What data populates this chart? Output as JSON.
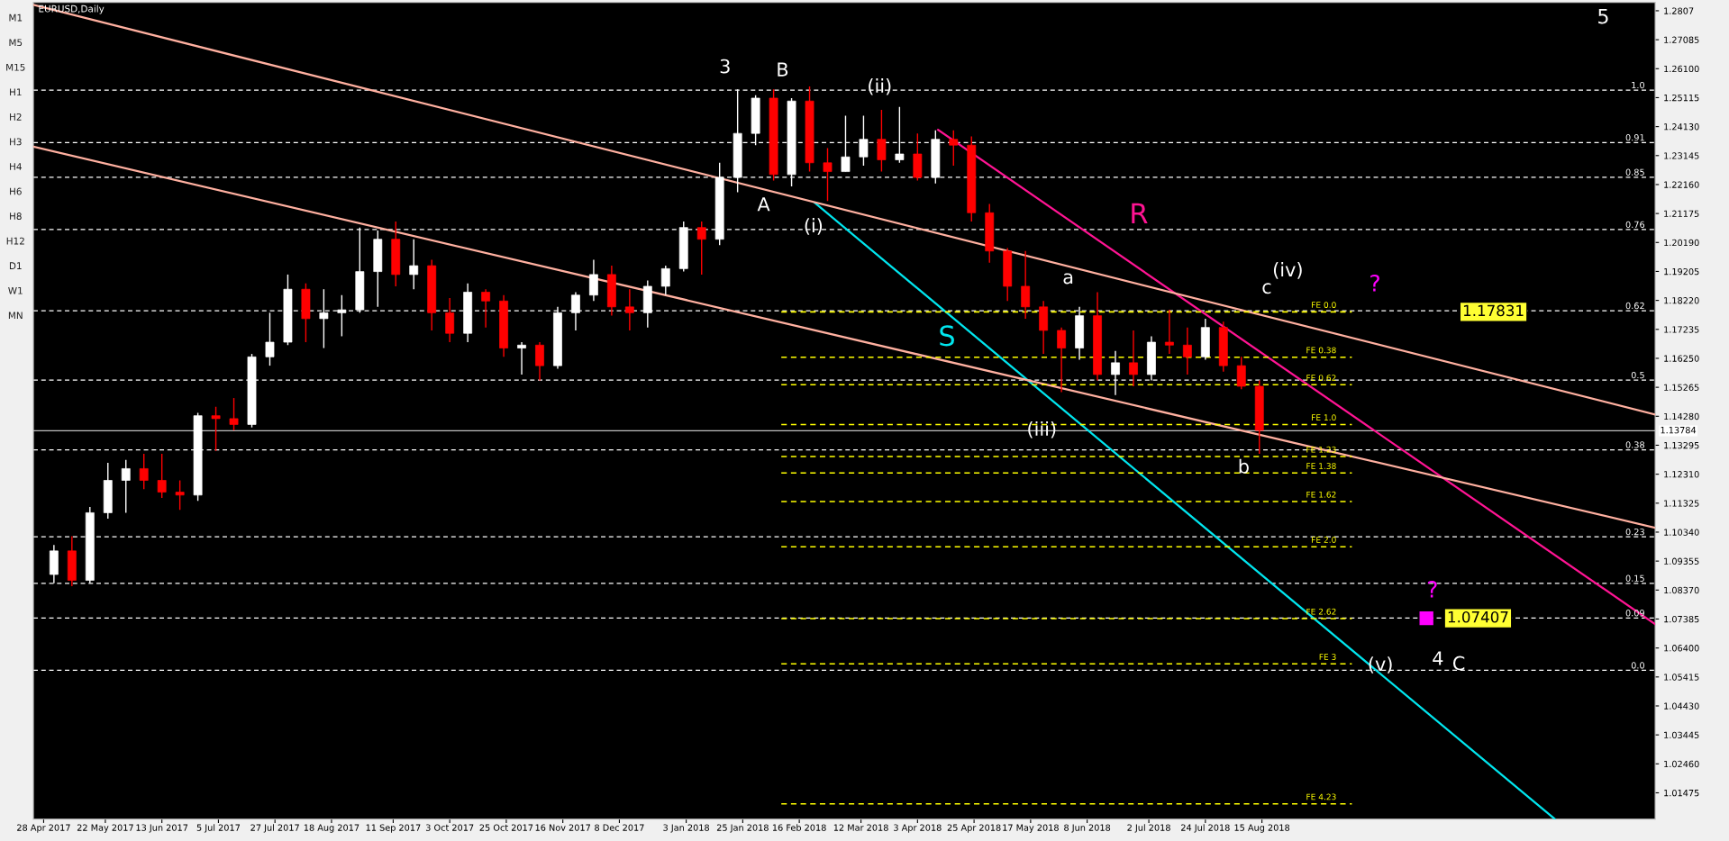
{
  "chart_data": {
    "type": "candlestick",
    "title": "EURUSD,Daily",
    "x": [
      "2017-05-02",
      "2017-05-09",
      "2017-05-16",
      "2017-05-23",
      "2017-05-30",
      "2017-06-06",
      "2017-06-13",
      "2017-06-20",
      "2017-06-27",
      "2017-07-04",
      "2017-07-11",
      "2017-07-18",
      "2017-07-25",
      "2017-08-01",
      "2017-08-08",
      "2017-08-15",
      "2017-08-22",
      "2017-08-29",
      "2017-09-05",
      "2017-09-12",
      "2017-09-19",
      "2017-09-26",
      "2017-10-03",
      "2017-10-10",
      "2017-10-17",
      "2017-10-24",
      "2017-10-31",
      "2017-11-07",
      "2017-11-14",
      "2017-11-21",
      "2017-11-28",
      "2017-12-05",
      "2017-12-12",
      "2017-12-19",
      "2017-12-26",
      "2018-01-02",
      "2018-01-09",
      "2018-01-16",
      "2018-01-23",
      "2018-01-30",
      "2018-02-06",
      "2018-02-13",
      "2018-02-20",
      "2018-02-27",
      "2018-03-06",
      "2018-03-13",
      "2018-03-20",
      "2018-03-27",
      "2018-04-03",
      "2018-04-10",
      "2018-04-17",
      "2018-04-24",
      "2018-05-01",
      "2018-05-08",
      "2018-05-15",
      "2018-05-22",
      "2018-05-29",
      "2018-06-05",
      "2018-06-12",
      "2018-06-19",
      "2018-06-26",
      "2018-07-03",
      "2018-07-10",
      "2018-07-17",
      "2018-07-24",
      "2018-07-31",
      "2018-08-07",
      "2018-08-14"
    ],
    "ohlc": [
      [
        1.089,
        1.099,
        1.086,
        1.097
      ],
      [
        1.097,
        1.102,
        1.085,
        1.087
      ],
      [
        1.087,
        1.112,
        1.086,
        1.11
      ],
      [
        1.11,
        1.127,
        1.108,
        1.121
      ],
      [
        1.121,
        1.128,
        1.11,
        1.125
      ],
      [
        1.125,
        1.13,
        1.118,
        1.121
      ],
      [
        1.121,
        1.13,
        1.115,
        1.117
      ],
      [
        1.117,
        1.121,
        1.111,
        1.116
      ],
      [
        1.116,
        1.144,
        1.114,
        1.143
      ],
      [
        1.143,
        1.146,
        1.131,
        1.142
      ],
      [
        1.142,
        1.149,
        1.138,
        1.14
      ],
      [
        1.14,
        1.164,
        1.139,
        1.163
      ],
      [
        1.163,
        1.178,
        1.16,
        1.168
      ],
      [
        1.168,
        1.191,
        1.167,
        1.186
      ],
      [
        1.186,
        1.188,
        1.168,
        1.176
      ],
      [
        1.176,
        1.186,
        1.166,
        1.178
      ],
      [
        1.178,
        1.184,
        1.17,
        1.179
      ],
      [
        1.179,
        1.207,
        1.178,
        1.192
      ],
      [
        1.192,
        1.206,
        1.18,
        1.203
      ],
      [
        1.203,
        1.209,
        1.187,
        1.191
      ],
      [
        1.191,
        1.203,
        1.186,
        1.194
      ],
      [
        1.194,
        1.196,
        1.172,
        1.178
      ],
      [
        1.178,
        1.183,
        1.168,
        1.171
      ],
      [
        1.171,
        1.188,
        1.168,
        1.185
      ],
      [
        1.185,
        1.186,
        1.173,
        1.182
      ],
      [
        1.182,
        1.184,
        1.163,
        1.166
      ],
      [
        1.166,
        1.168,
        1.157,
        1.167
      ],
      [
        1.167,
        1.168,
        1.155,
        1.16
      ],
      [
        1.16,
        1.18,
        1.159,
        1.178
      ],
      [
        1.178,
        1.185,
        1.172,
        1.184
      ],
      [
        1.184,
        1.196,
        1.182,
        1.191
      ],
      [
        1.191,
        1.194,
        1.177,
        1.18
      ],
      [
        1.18,
        1.186,
        1.172,
        1.178
      ],
      [
        1.178,
        1.189,
        1.173,
        1.187
      ],
      [
        1.187,
        1.194,
        1.184,
        1.193
      ],
      [
        1.193,
        1.209,
        1.192,
        1.207
      ],
      [
        1.207,
        1.209,
        1.191,
        1.203
      ],
      [
        1.203,
        1.229,
        1.201,
        1.224
      ],
      [
        1.224,
        1.254,
        1.219,
        1.239
      ],
      [
        1.239,
        1.252,
        1.235,
        1.251
      ],
      [
        1.251,
        1.254,
        1.223,
        1.225
      ],
      [
        1.225,
        1.251,
        1.221,
        1.25
      ],
      [
        1.25,
        1.255,
        1.226,
        1.229
      ],
      [
        1.229,
        1.234,
        1.216,
        1.226
      ],
      [
        1.226,
        1.245,
        1.226,
        1.231
      ],
      [
        1.231,
        1.245,
        1.228,
        1.237
      ],
      [
        1.237,
        1.247,
        1.226,
        1.23
      ],
      [
        1.23,
        1.248,
        1.229,
        1.232
      ],
      [
        1.232,
        1.239,
        1.223,
        1.224
      ],
      [
        1.224,
        1.24,
        1.222,
        1.237
      ],
      [
        1.237,
        1.24,
        1.228,
        1.235
      ],
      [
        1.235,
        1.238,
        1.209,
        1.212
      ],
      [
        1.212,
        1.215,
        1.195,
        1.199
      ],
      [
        1.199,
        1.2,
        1.182,
        1.187
      ],
      [
        1.187,
        1.199,
        1.176,
        1.18
      ],
      [
        1.18,
        1.182,
        1.164,
        1.172
      ],
      [
        1.172,
        1.173,
        1.151,
        1.166
      ],
      [
        1.166,
        1.18,
        1.162,
        1.177
      ],
      [
        1.177,
        1.185,
        1.155,
        1.157
      ],
      [
        1.157,
        1.165,
        1.15,
        1.161
      ],
      [
        1.161,
        1.172,
        1.153,
        1.157
      ],
      [
        1.157,
        1.17,
        1.155,
        1.168
      ],
      [
        1.168,
        1.179,
        1.164,
        1.167
      ],
      [
        1.167,
        1.173,
        1.157,
        1.163
      ],
      [
        1.163,
        1.176,
        1.162,
        1.173
      ],
      [
        1.173,
        1.175,
        1.158,
        1.16
      ],
      [
        1.16,
        1.163,
        1.152,
        1.153
      ],
      [
        1.153,
        1.155,
        1.13,
        1.138
      ]
    ],
    "colors": [
      "#ffffff",
      "#ff0000",
      "#ffffff",
      "#ffffff",
      "#ffffff",
      "#ff0000",
      "#ff0000",
      "#ff0000",
      "#ffffff",
      "#ff0000",
      "#ff0000",
      "#ffffff",
      "#ffffff",
      "#ffffff",
      "#ff0000",
      "#ffffff",
      "#ffffff",
      "#ffffff",
      "#ffffff",
      "#ff0000",
      "#ffffff",
      "#ff0000",
      "#ff0000",
      "#ffffff",
      "#ff0000",
      "#ff0000",
      "#ffffff",
      "#ff0000",
      "#ffffff",
      "#ffffff",
      "#ffffff",
      "#ff0000",
      "#ff0000",
      "#ffffff",
      "#ffffff",
      "#ffffff",
      "#ff0000",
      "#ffffff",
      "#ffffff",
      "#ffffff",
      "#ff0000",
      "#ffffff",
      "#ff0000",
      "#ff0000",
      "#ffffff",
      "#ffffff",
      "#ff0000",
      "#ffffff",
      "#ff0000",
      "#ffffff",
      "#ff0000",
      "#ff0000",
      "#ff0000",
      "#ff0000",
      "#ff0000",
      "#ff0000",
      "#ff0000",
      "#ffffff",
      "#ff0000",
      "#ffffff",
      "#ff0000",
      "#ffffff",
      "#ff0000",
      "#ff0000",
      "#ffffff",
      "#ff0000",
      "#ff0000",
      "#ff0000"
    ],
    "xlim": [
      "2017-04-24",
      "2019-01-15"
    ],
    "xticks": [
      {
        "value": "2017-04-28",
        "label": "28 Apr 2017"
      },
      {
        "value": "2017-05-22",
        "label": "22 May 2017"
      },
      {
        "value": "2017-06-13",
        "label": "13 Jun 2017"
      },
      {
        "value": "2017-07-05",
        "label": "5 Jul 2017"
      },
      {
        "value": "2017-07-27",
        "label": "27 Jul 2017"
      },
      {
        "value": "2017-08-18",
        "label": "18 Aug 2017"
      },
      {
        "value": "2017-09-11",
        "label": "11 Sep 2017"
      },
      {
        "value": "2017-10-03",
        "label": "3 Oct 2017"
      },
      {
        "value": "2017-10-25",
        "label": "25 Oct 2017"
      },
      {
        "value": "2017-11-16",
        "label": "16 Nov 2017"
      },
      {
        "value": "2017-12-08",
        "label": "8 Dec 2017"
      },
      {
        "value": "2018-01-03",
        "label": "3 Jan 2018"
      },
      {
        "value": "2018-01-25",
        "label": "25 Jan 2018"
      },
      {
        "value": "2018-02-16",
        "label": "16 Feb 2018"
      },
      {
        "value": "2018-03-12",
        "label": "12 Mar 2018"
      },
      {
        "value": "2018-04-03",
        "label": "3 Apr 2018"
      },
      {
        "value": "2018-04-25",
        "label": "25 Apr 2018"
      },
      {
        "value": "2018-05-17",
        "label": "17 May 2018"
      },
      {
        "value": "2018-06-08",
        "label": "8 Jun 2018"
      },
      {
        "value": "2018-07-02",
        "label": "2 Jul 2018"
      },
      {
        "value": "2018-07-24",
        "label": "24 Jul 2018"
      },
      {
        "value": "2018-08-15",
        "label": "15 Aug 2018"
      }
    ],
    "ylim": [
      1.0058,
      1.2835
    ],
    "yticks": [
      1.2807,
      {
        "value": 1.27085,
        "label": "1.27085"
      },
      {
        "value": 1.261,
        "label": "1.26100"
      },
      {
        "value": 1.25115,
        "label": "1.25115"
      },
      {
        "value": 1.2413,
        "label": "1.24130"
      },
      {
        "value": 1.23145,
        "label": "1.23145"
      },
      {
        "value": 1.2216,
        "label": "1.22160"
      },
      {
        "value": 1.21175,
        "label": "1.21175"
      },
      {
        "value": 1.2019,
        "label": "1.20190"
      },
      {
        "value": 1.19205,
        "label": "1.19205"
      },
      {
        "value": 1.1822,
        "label": "1.18220"
      },
      {
        "value": 1.17235,
        "label": "1.17235"
      },
      {
        "value": 1.1625,
        "label": "1.16250"
      },
      {
        "value": 1.15265,
        "label": "1.15265"
      },
      {
        "value": 1.1428,
        "label": "1.14280"
      },
      {
        "value": 1.13295,
        "label": "1.13295"
      },
      {
        "value": 1.1231,
        "label": "1.12310"
      },
      {
        "value": 1.11325,
        "label": "1.11325"
      },
      {
        "value": 1.1034,
        "label": "1.10340"
      },
      {
        "value": 1.09355,
        "label": "1.09355"
      },
      {
        "value": 1.0837,
        "label": "1.08370"
      },
      {
        "value": 1.07385,
        "label": "1.07385"
      },
      {
        "value": 1.064,
        "label": "1.06400"
      },
      {
        "value": 1.05415,
        "label": "1.05415"
      },
      {
        "value": 1.0443,
        "label": "1.04430"
      },
      {
        "value": 1.03445,
        "label": "1.03445"
      },
      {
        "value": 1.0246,
        "label": "1.02460"
      },
      {
        "value": 1.01475,
        "label": "1.01475"
      }
    ],
    "series": [
      {
        "type": "line",
        "color": "#00e5ee",
        "x": [
          "2018-02-22",
          "2018-12-07"
        ],
        "values": [
          1.2154,
          1.0058
        ]
      },
      {
        "type": "line",
        "color": "#ff1493",
        "x": [
          "2018-04-11",
          "2019-01-15"
        ],
        "values": [
          1.2402,
          1.0721
        ]
      },
      {
        "type": "line",
        "color": "#ffb0a0",
        "x": [
          "2017-04-24",
          "2019-01-15"
        ],
        "values": [
          1.2827,
          1.1434
        ]
      },
      {
        "type": "line",
        "color": "#ffb0a0",
        "x": [
          "2017-04-24",
          "2019-01-15"
        ],
        "values": [
          1.2345,
          1.1049
        ]
      },
      {
        "type": "line",
        "name": "FE 0.0",
        "color": "#ffff00",
        "line_style": "dashed",
        "x": [
          "2018-02-09",
          "2018-09-19"
        ],
        "values": [
          1.1783,
          1.1783
        ]
      },
      {
        "type": "line",
        "name": "FE 0.38",
        "color": "#ffff00",
        "line_style": "dashed",
        "x": [
          "2018-02-09",
          "2018-09-19"
        ],
        "values": [
          1.1629,
          1.1629
        ]
      },
      {
        "type": "line",
        "name": "FE 0.62",
        "color": "#ffff00",
        "line_style": "dashed",
        "x": [
          "2018-02-09",
          "2018-09-19"
        ],
        "values": [
          1.1535,
          1.1535
        ]
      },
      {
        "type": "line",
        "name": "FE 1.0",
        "color": "#ffff00",
        "line_style": "dashed",
        "x": [
          "2018-02-09",
          "2018-09-19"
        ],
        "values": [
          1.14,
          1.14
        ]
      },
      {
        "type": "line",
        "name": "FE 1.23",
        "color": "#ffff00",
        "line_style": "dashed",
        "x": [
          "2018-02-09",
          "2018-09-19"
        ],
        "values": [
          1.1291,
          1.1291
        ]
      },
      {
        "type": "line",
        "name": "FE 1.38",
        "color": "#ffff00",
        "line_style": "dashed",
        "x": [
          "2018-02-09",
          "2018-09-19"
        ],
        "values": [
          1.1235,
          1.1235
        ]
      },
      {
        "type": "line",
        "name": "FE 1.62",
        "color": "#ffff00",
        "line_style": "dashed",
        "x": [
          "2018-02-09",
          "2018-09-19"
        ],
        "values": [
          1.1138,
          1.1138
        ]
      },
      {
        "type": "line",
        "name": "FE 2.0",
        "color": "#ffff00",
        "line_style": "dashed",
        "x": [
          "2018-02-09",
          "2018-09-19"
        ],
        "values": [
          1.0984,
          1.0984
        ]
      },
      {
        "type": "line",
        "name": "FE 2.62",
        "color": "#ffff00",
        "line_style": "dashed",
        "x": [
          "2018-02-09",
          "2018-09-19"
        ],
        "values": [
          1.074,
          1.074
        ]
      },
      {
        "type": "line",
        "name": "FE 3",
        "color": "#ffff00",
        "line_style": "dashed",
        "x": [
          "2018-02-09",
          "2018-09-19"
        ],
        "values": [
          1.0586,
          1.0586
        ]
      },
      {
        "type": "line",
        "name": "FE 4.23",
        "color": "#ffff00",
        "line_style": "dashed",
        "x": [
          "2018-02-09",
          "2018-09-19"
        ],
        "values": [
          1.011,
          1.011
        ]
      },
      {
        "type": "scatter",
        "color": "#ff00ff",
        "marker": "square",
        "x": [
          "2018-10-18"
        ],
        "values": [
          1.0741
        ]
      }
    ],
    "ref_lines": [
      {
        "axis": "y",
        "value": 1.2537,
        "color": "#ffffff",
        "line_style": "dashed"
      },
      {
        "axis": "y",
        "value": 1.2359,
        "color": "#ffffff",
        "line_style": "dashed"
      },
      {
        "axis": "y",
        "value": 1.2241,
        "color": "#ffffff",
        "line_style": "dashed"
      },
      {
        "axis": "y",
        "value": 1.2063,
        "color": "#ffffff",
        "line_style": "dashed"
      },
      {
        "axis": "y",
        "value": 1.1787,
        "color": "#ffffff",
        "line_style": "dashed"
      },
      {
        "axis": "y",
        "value": 1.1551,
        "color": "#ffffff",
        "line_style": "dashed"
      },
      {
        "axis": "y",
        "value": 1.1314,
        "color": "#ffffff",
        "line_style": "dashed"
      },
      {
        "axis": "y",
        "value": 1.1018,
        "color": "#ffffff",
        "line_style": "dashed"
      },
      {
        "axis": "y",
        "value": 1.086,
        "color": "#ffffff",
        "line_style": "dashed"
      },
      {
        "axis": "y",
        "value": 1.0742,
        "color": "#ffffff",
        "line_style": "dashed"
      },
      {
        "axis": "y",
        "value": 1.0564,
        "color": "#ffffff",
        "line_style": "dashed"
      },
      {
        "axis": "y",
        "value": 1.13784,
        "label": "1.13784",
        "color": "#c0c0c0",
        "line_style": "solid"
      }
    ],
    "annotations": [
      {
        "text": "1.0",
        "x": "2019-01-11",
        "y": 1.2537
      },
      {
        "text": "0.91",
        "x": "2019-01-11",
        "y": 1.2359
      },
      {
        "text": "0.85",
        "x": "2019-01-11",
        "y": 1.2241
      },
      {
        "text": "0.76",
        "x": "2019-01-11",
        "y": 1.2063
      },
      {
        "text": "0.62",
        "x": "2019-01-11",
        "y": 1.1787
      },
      {
        "text": "0.5",
        "x": "2019-01-11",
        "y": 1.1551
      },
      {
        "text": "0.38",
        "x": "2019-01-11",
        "y": 1.1314
      },
      {
        "text": "0.23",
        "x": "2019-01-11",
        "y": 1.1018
      },
      {
        "text": "0.15",
        "x": "2019-01-11",
        "y": 1.086
      },
      {
        "text": "0.09",
        "x": "2019-01-11",
        "y": 1.0742
      },
      {
        "text": "0.0",
        "x": "2019-01-11",
        "y": 1.0564
      },
      {
        "text": "1.17831",
        "x": "2018-10-24",
        "y": 1.1783
      },
      {
        "text": "1.07407",
        "x": "2018-10-18",
        "y": 1.0741
      },
      "3",
      "B",
      "(ii)",
      "A",
      "(i)",
      "S",
      "R",
      "(iii)",
      "a",
      "(iv)",
      "c",
      "b",
      "?",
      "?",
      "(v)",
      "4",
      "C",
      "5",
      "M1",
      "M5",
      "M15",
      "H1",
      "H2",
      "H3",
      "H4",
      "H6",
      "H8",
      "H12",
      "D1",
      "W1",
      "MN"
    ],
    "grid": false,
    "legend": false
  }
}
